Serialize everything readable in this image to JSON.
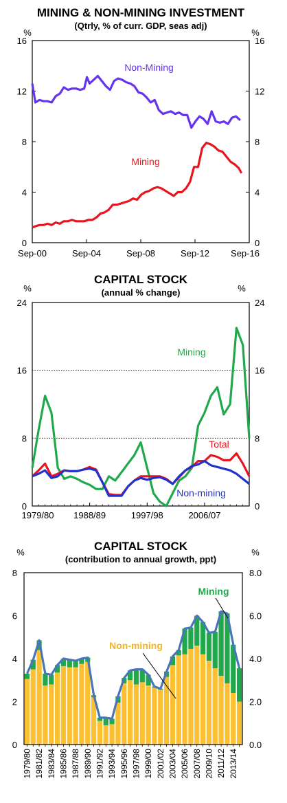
{
  "charts": [
    {
      "type": "line",
      "title": "MINING & NON-MINING INVESTMENT",
      "subtitle": "(Qtrly, % of curr. GDP, seas adj)",
      "unit_left": "%",
      "unit_right": "%",
      "y_ticks": [
        "0",
        "4",
        "8",
        "12",
        "16"
      ],
      "ylim": [
        0,
        16
      ],
      "x_ticks": [
        "Sep-00",
        "Sep-04",
        "Sep-08",
        "Sep-12",
        "Sep-16"
      ],
      "xlim": [
        2000.67,
        2016.67
      ],
      "grid": false,
      "colors": {
        "non_mining": "#6633ee",
        "mining": "#e8141e"
      },
      "series": [
        {
          "name": "Non-Mining",
          "x": [
            2000.67,
            2000.9,
            2001.2,
            2001.5,
            2001.8,
            2002.1,
            2002.4,
            2002.7,
            2003.0,
            2003.3,
            2003.6,
            2003.9,
            2004.2,
            2004.5,
            2004.7,
            2004.9,
            2005.2,
            2005.5,
            2005.8,
            2006.1,
            2006.4,
            2006.7,
            2007.0,
            2007.3,
            2007.6,
            2007.9,
            2008.2,
            2008.5,
            2008.8,
            2009.1,
            2009.4,
            2009.7,
            2010.0,
            2010.3,
            2010.6,
            2010.9,
            2011.2,
            2011.5,
            2011.8,
            2012.1,
            2012.4,
            2012.7,
            2013.0,
            2013.3,
            2013.6,
            2013.9,
            2014.2,
            2014.5,
            2014.8,
            2015.1,
            2015.4,
            2015.7,
            2016.0
          ],
          "values": [
            12.6,
            11.1,
            11.3,
            11.2,
            11.2,
            11.1,
            11.6,
            11.8,
            12.3,
            12.1,
            12.2,
            12.2,
            12.1,
            12.2,
            13.1,
            12.6,
            12.9,
            13.2,
            12.8,
            12.4,
            12.1,
            12.8,
            13.0,
            12.9,
            12.7,
            12.6,
            12.4,
            11.9,
            11.8,
            11.5,
            11.1,
            11.3,
            10.5,
            10.2,
            10.3,
            10.4,
            10.2,
            10.3,
            10.1,
            10.1,
            9.1,
            9.6,
            10.0,
            9.8,
            9.4,
            10.4,
            9.6,
            9.5,
            9.6,
            9.4,
            9.9,
            10.0,
            9.7
          ]
        },
        {
          "name": "Mining",
          "x": [
            2000.67,
            2000.9,
            2001.2,
            2001.5,
            2001.8,
            2002.1,
            2002.4,
            2002.7,
            2003.0,
            2003.3,
            2003.6,
            2003.9,
            2004.2,
            2004.5,
            2004.8,
            2005.1,
            2005.4,
            2005.7,
            2006.0,
            2006.3,
            2006.6,
            2006.9,
            2007.2,
            2007.5,
            2007.8,
            2008.1,
            2008.4,
            2008.7,
            2009.0,
            2009.3,
            2009.6,
            2009.9,
            2010.2,
            2010.5,
            2010.8,
            2011.1,
            2011.4,
            2011.7,
            2012.0,
            2012.3,
            2012.6,
            2012.9,
            2013.2,
            2013.5,
            2013.8,
            2014.1,
            2014.4,
            2014.7,
            2015.0,
            2015.3,
            2015.6,
            2015.9,
            2016.1
          ],
          "values": [
            1.2,
            1.3,
            1.4,
            1.4,
            1.5,
            1.4,
            1.6,
            1.5,
            1.7,
            1.7,
            1.8,
            1.7,
            1.7,
            1.7,
            1.8,
            1.8,
            2.0,
            2.3,
            2.4,
            2.6,
            3.0,
            3.0,
            3.1,
            3.2,
            3.3,
            3.5,
            3.4,
            3.8,
            4.0,
            4.1,
            4.3,
            4.4,
            4.3,
            4.1,
            3.9,
            3.7,
            4.0,
            4.0,
            4.3,
            4.8,
            6.0,
            6.0,
            7.5,
            7.9,
            7.8,
            7.6,
            7.3,
            7.2,
            6.8,
            6.4,
            6.2,
            5.9,
            5.5
          ]
        }
      ]
    },
    {
      "type": "line",
      "title": "CAPITAL STOCK",
      "subtitle": "(annual % change)",
      "unit_left": "%",
      "unit_right": "%",
      "y_ticks": [
        "0",
        "8",
        "16",
        "24"
      ],
      "ylim": [
        0,
        24
      ],
      "x_ticks": [
        "1979/80",
        "1988/89",
        "1997/98",
        "2006/07"
      ],
      "xlim": [
        1979.5,
        2013.5
      ],
      "grid": "dotted horizontal",
      "colors": {
        "mining": "#22a84c",
        "total": "#e8141e",
        "non_mining": "#2233cc"
      },
      "series": [
        {
          "name": "Mining",
          "x": [
            1979.5,
            1980.5,
            1981.5,
            1982.5,
            1983.5,
            1984.5,
            1985.5,
            1986.5,
            1987.5,
            1988.5,
            1989.5,
            1990.5,
            1991.5,
            1992.5,
            1993.5,
            1994.5,
            1995.5,
            1996.5,
            1997.5,
            1998.5,
            1999.5,
            2000.5,
            2001.5,
            2002.5,
            2003.5,
            2004.5,
            2005.5,
            2006.5,
            2007.5,
            2008.5,
            2009.5,
            2010.5,
            2011.5,
            2012.5,
            2013.5
          ],
          "values": [
            4.5,
            9,
            13,
            11,
            4.5,
            3.2,
            3.5,
            3.2,
            2.8,
            2.5,
            2,
            2,
            3.5,
            3,
            4,
            5,
            6,
            7.5,
            4.5,
            1.5,
            0.5,
            0,
            1.5,
            3,
            3.5,
            4.5,
            9.5,
            11,
            13,
            14,
            10.8,
            12,
            21,
            19,
            8
          ]
        },
        {
          "name": "Total",
          "x": [
            1979.5,
            1980.5,
            1981.5,
            1982.5,
            1983.5,
            1984.5,
            1985.5,
            1986.5,
            1987.5,
            1988.5,
            1989.5,
            1990.5,
            1991.5,
            1992.5,
            1993.5,
            1994.5,
            1995.5,
            1996.5,
            1997.5,
            1998.5,
            1999.5,
            2000.5,
            2001.5,
            2002.5,
            2003.5,
            2004.5,
            2005.5,
            2006.5,
            2007.5,
            2008.5,
            2009.5,
            2010.5,
            2011.5,
            2012.5,
            2013.5
          ],
          "values": [
            3.5,
            4.2,
            5,
            3.5,
            3.8,
            4.2,
            4.1,
            4.1,
            4.3,
            4.6,
            4.3,
            2.8,
            1.4,
            1.3,
            1.3,
            2.3,
            3,
            3.5,
            3.5,
            3.5,
            3.5,
            3.2,
            2.6,
            3.4,
            4.2,
            4.6,
            5.3,
            5.3,
            6,
            5.8,
            5.4,
            5.4,
            6.2,
            5,
            3.5
          ]
        },
        {
          "name": "Non-mining",
          "x": [
            1979.5,
            1980.5,
            1981.5,
            1982.5,
            1983.5,
            1984.5,
            1985.5,
            1986.5,
            1987.5,
            1988.5,
            1989.5,
            1990.5,
            1991.5,
            1992.5,
            1993.5,
            1994.5,
            1995.5,
            1996.5,
            1997.5,
            1998.5,
            1999.5,
            2000.5,
            2001.5,
            2002.5,
            2003.5,
            2004.5,
            2005.5,
            2006.5,
            2007.5,
            2008.5,
            2009.5,
            2010.5,
            2011.5,
            2012.5,
            2013.5
          ],
          "values": [
            3.5,
            3.8,
            4.2,
            3.3,
            3.5,
            4.2,
            4.1,
            4.1,
            4.3,
            4.4,
            4.2,
            2.8,
            1.2,
            1.2,
            1.2,
            2.3,
            3,
            3.3,
            3.1,
            3.3,
            3.4,
            3.1,
            2.6,
            3.5,
            4.2,
            4.7,
            4.9,
            5.3,
            4.8,
            4.6,
            4.4,
            4.2,
            3.8,
            3.2,
            2.6
          ]
        }
      ],
      "labels": {
        "mining": "Mining",
        "total": "Total",
        "non_mining": "Non-mining"
      }
    },
    {
      "type": "bar",
      "stacked": true,
      "title": "CAPITAL STOCK",
      "subtitle": "(contribution to annual growth, ppt)",
      "unit_left": "%",
      "unit_right": "%",
      "y_ticks_left": [
        "0",
        "2",
        "4",
        "6",
        "8"
      ],
      "y_ticks_right": [
        "0.0",
        "2.0",
        "4.0",
        "6.0",
        "8.0"
      ],
      "ylim": [
        0,
        8
      ],
      "grid": false,
      "colors": {
        "non_mining": "#fbbf32",
        "mining": "#22a84c",
        "total": "#4a76b8"
      },
      "categories": [
        "1979/80",
        "1980/81",
        "1981/82",
        "1982/83",
        "1983/84",
        "1984/85",
        "1985/86",
        "1986/87",
        "1987/88",
        "1988/89",
        "1989/90",
        "1990/91",
        "1991/92",
        "1992/93",
        "1993/94",
        "1994/95",
        "1995/96",
        "1996/97",
        "1997/98",
        "1998/99",
        "1999/00",
        "2000/01",
        "2001/02",
        "2002/03",
        "2003/04",
        "2004/05",
        "2005/06",
        "2006/07",
        "2007/08",
        "2008/09",
        "2009/10",
        "2010/11",
        "2011/12",
        "2012/13",
        "2013/14",
        "2014/15"
      ],
      "x_tick_labels": [
        "1979/80",
        "1981/82",
        "1983/84",
        "1985/86",
        "1987/88",
        "1989/90",
        "1991/92",
        "1993/94",
        "1995/96",
        "1997/98",
        "1999/00",
        "2001/02",
        "2003/04",
        "2005/06",
        "2007/08",
        "2009/10",
        "2011/12",
        "2013/14"
      ],
      "series": [
        {
          "name": "Non-mining",
          "values": [
            3.05,
            3.5,
            4.4,
            2.75,
            2.8,
            3.35,
            3.65,
            3.6,
            3.6,
            3.75,
            3.85,
            2.2,
            1.1,
            0.9,
            0.95,
            1.95,
            2.85,
            3.0,
            2.8,
            2.9,
            2.75,
            2.65,
            2.55,
            3.15,
            3.7,
            4.15,
            4.2,
            4.45,
            4.6,
            4.2,
            3.9,
            3.55,
            3.2,
            2.85,
            2.4,
            2.0
          ]
        },
        {
          "name": "Mining",
          "values": [
            0.25,
            0.45,
            0.45,
            0.55,
            0.45,
            0.35,
            0.35,
            0.35,
            0.3,
            0.25,
            0.2,
            0.1,
            0.15,
            0.35,
            0.25,
            0.3,
            0.25,
            0.45,
            0.7,
            0.6,
            0.5,
            0.05,
            0.05,
            0.25,
            0.4,
            0.25,
            1.2,
            1.0,
            1.4,
            1.5,
            1.3,
            1.7,
            3.0,
            3.25,
            2.25,
            1.55
          ]
        },
        {
          "name": "Total",
          "values": [
            3.3,
            3.95,
            4.85,
            3.3,
            3.25,
            3.7,
            4.0,
            3.95,
            3.9,
            4.0,
            4.05,
            2.3,
            1.25,
            1.25,
            1.2,
            2.25,
            3.1,
            3.45,
            3.5,
            3.5,
            3.25,
            2.7,
            2.6,
            3.4,
            4.1,
            4.4,
            5.4,
            5.45,
            6.0,
            5.7,
            5.2,
            5.25,
            6.2,
            6.1,
            4.65,
            3.55
          ]
        }
      ],
      "labels": {
        "mining": "Mining",
        "non_mining": "Non-mining"
      }
    }
  ]
}
